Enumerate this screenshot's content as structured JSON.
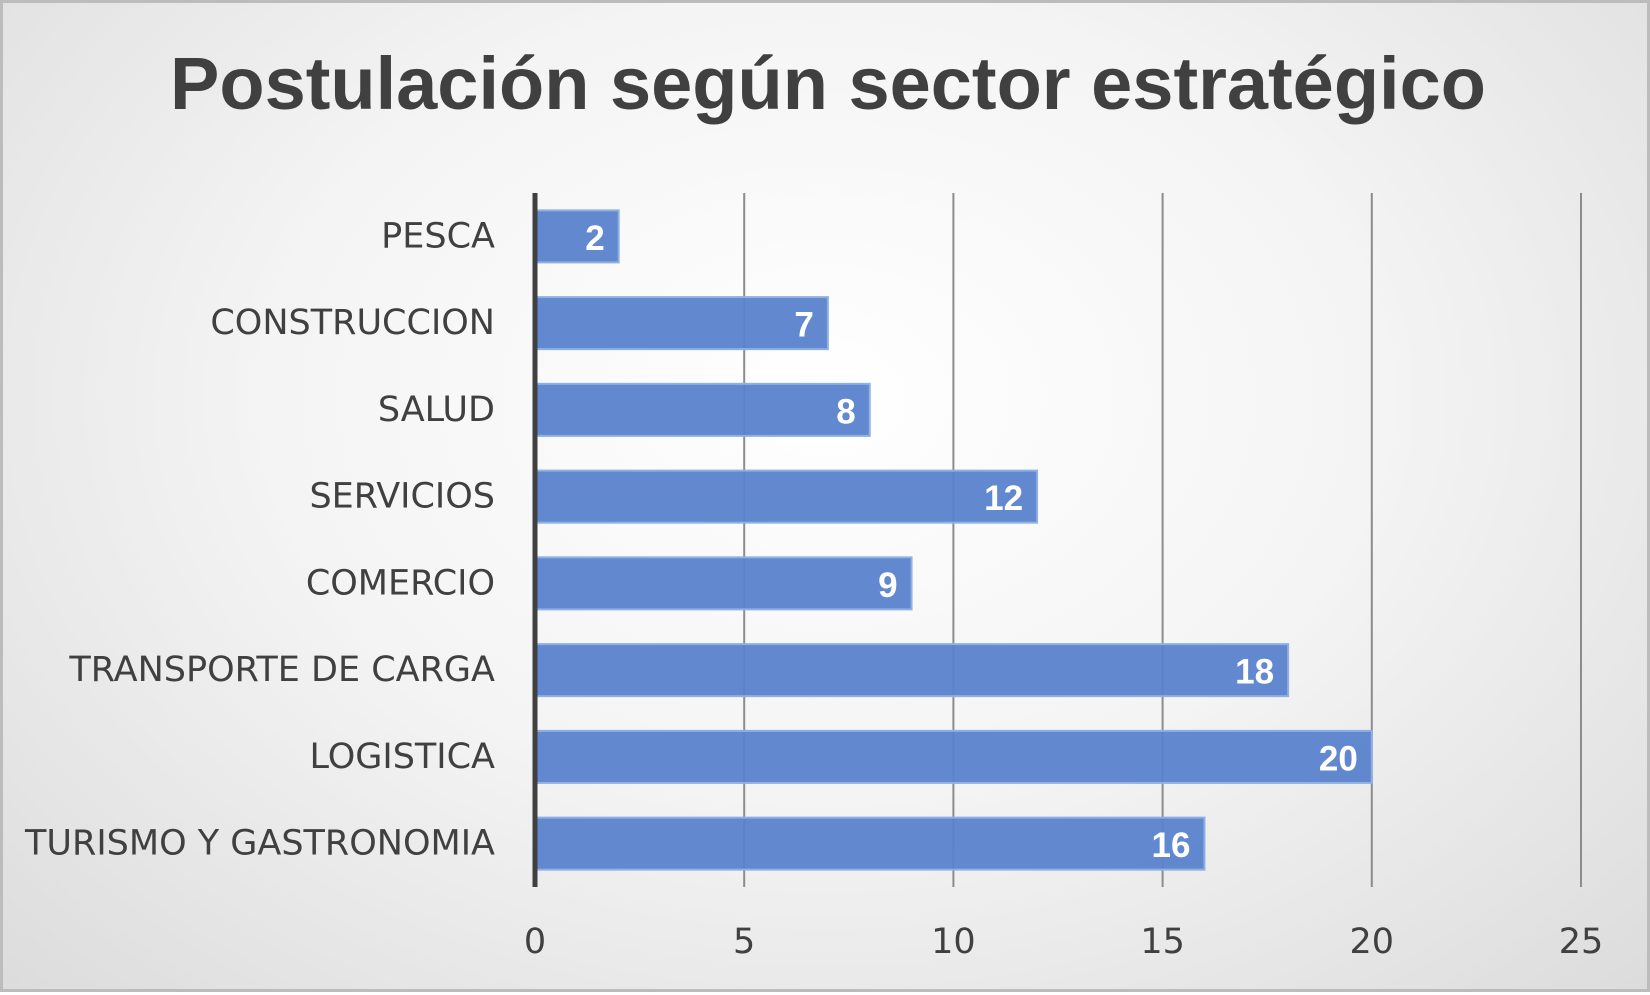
{
  "chart_data": {
    "type": "bar",
    "orientation": "horizontal",
    "title": "Postulación según sector estratégico",
    "xlabel": "",
    "ylabel": "",
    "categories": [
      "PESCA",
      "CONSTRUCCION",
      "SALUD",
      "SERVICIOS",
      "COMERCIO",
      "TRANSPORTE DE CARGA",
      "LOGISTICA",
      "TURISMO Y GASTRONOMIA"
    ],
    "values": [
      2,
      7,
      8,
      12,
      9,
      18,
      20,
      16
    ],
    "xlim": [
      0,
      25
    ],
    "xticks": [
      0,
      5,
      10,
      15,
      20,
      25
    ],
    "grid": "vertical",
    "legend": "none",
    "data_labels": true,
    "colors": {
      "bar": "#5a83cc",
      "bar_edge": "#8fb0e3",
      "gridline": "#8c8c8c",
      "axis": "#404040",
      "text": "#404040",
      "data_label": "#ffffff"
    }
  }
}
